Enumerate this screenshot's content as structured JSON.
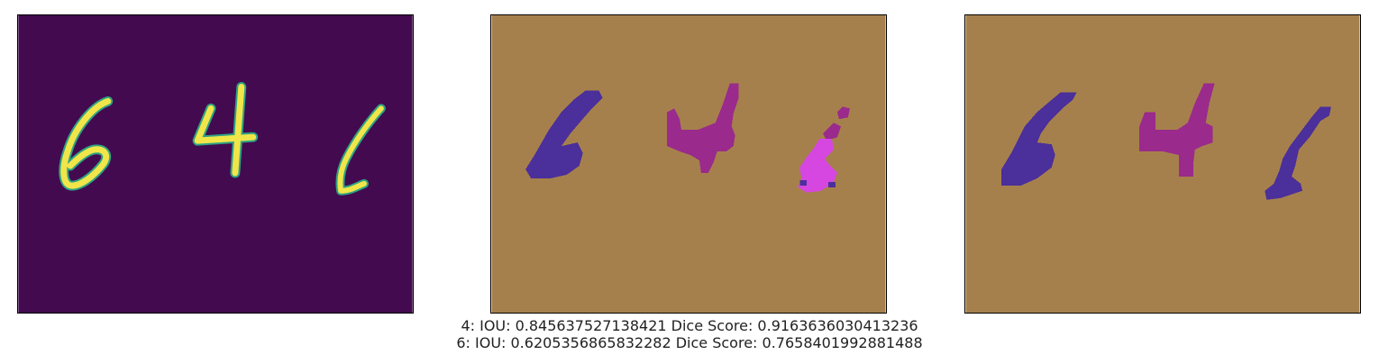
{
  "panels": [
    {
      "role": "input-image",
      "background": "#440a4f",
      "digits": [
        "6",
        "4",
        "1"
      ],
      "digit_color": "#f1e54a",
      "outline_color": "#2ea383"
    },
    {
      "role": "predicted-mask",
      "background": "#a6804c",
      "digit_colors": {
        "6": "#4b2f9a",
        "4": "#9a2a8c",
        "1": "#d547e0"
      }
    },
    {
      "role": "ground-truth-mask",
      "background": "#a6804c",
      "digit_colors": {
        "6": "#4b2f9a",
        "4": "#9a2a8c",
        "1": "#4b2f9a"
      }
    }
  ],
  "metrics": {
    "line1": "4: IOU: 0.845637527138421 Dice Score: 0.9163636030413236",
    "line2": "6: IOU: 0.6205356865832282 Dice Score: 0.7658401992881488"
  }
}
